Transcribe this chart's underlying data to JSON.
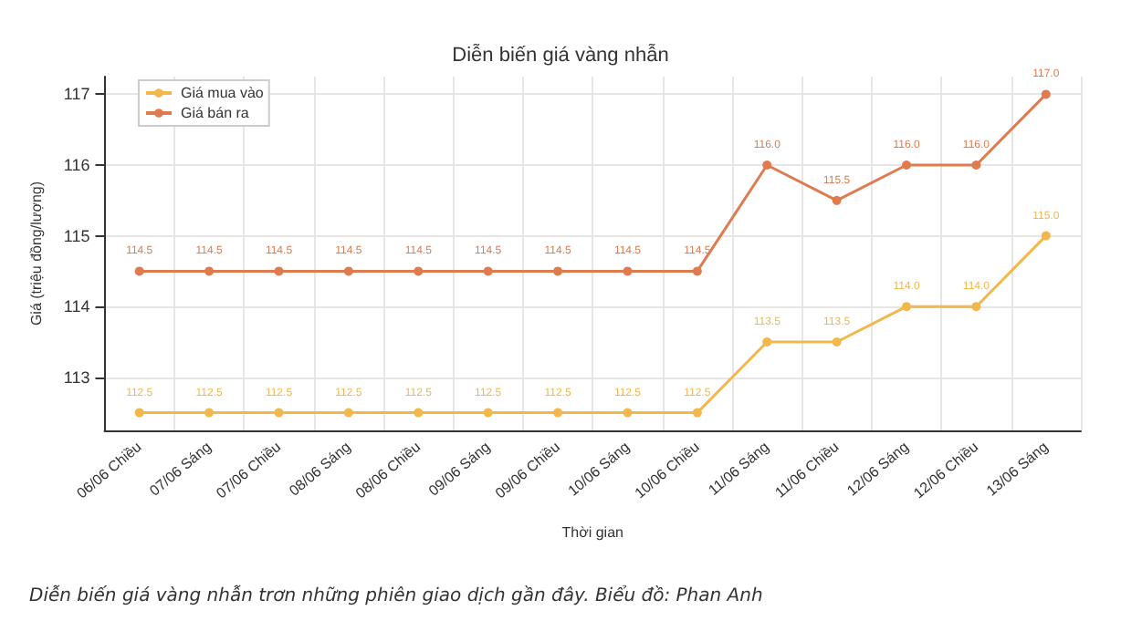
{
  "chart_data": {
    "type": "line",
    "title": "Diễn biến giá vàng nhẫn",
    "xlabel": "Thời gian",
    "ylabel": "Giá (triệu đồng/lượng)",
    "categories": [
      "06/06 Chiều",
      "07/06 Sáng",
      "07/06 Chiều",
      "08/06 Sáng",
      "08/06 Chiều",
      "09/06 Sáng",
      "09/06 Chiều",
      "10/06 Sáng",
      "10/06 Chiều",
      "11/06 Sáng",
      "11/06 Chiều",
      "12/06 Sáng",
      "12/06 Chiều",
      "13/06 Sáng"
    ],
    "series": [
      {
        "name": "Giá mua vào",
        "color": "#f2b84b",
        "values": [
          112.5,
          112.5,
          112.5,
          112.5,
          112.5,
          112.5,
          112.5,
          112.5,
          112.5,
          113.5,
          113.5,
          114.0,
          114.0,
          115.0
        ],
        "value_labels": [
          "112.5",
          "112.5",
          "112.5",
          "112.5",
          "112.5",
          "112.5",
          "112.5",
          "112.5",
          "112.5",
          "113.5",
          "113.5",
          "114.0",
          "114.0",
          "115.0"
        ]
      },
      {
        "name": "Giá bán ra",
        "color": "#e07b4f",
        "values": [
          114.5,
          114.5,
          114.5,
          114.5,
          114.5,
          114.5,
          114.5,
          114.5,
          114.5,
          116.0,
          115.5,
          116.0,
          116.0,
          117.0
        ],
        "value_labels": [
          "114.5",
          "114.5",
          "114.5",
          "114.5",
          "114.5",
          "114.5",
          "114.5",
          "114.5",
          "114.5",
          "116.0",
          "115.5",
          "116.0",
          "116.0",
          "117.0"
        ]
      }
    ],
    "ylim": [
      112.25,
      117.25
    ],
    "yticks": [
      113,
      114,
      115,
      116,
      117
    ],
    "grid": true,
    "legend": "top left",
    "marker": "circle",
    "line_style": "solid",
    "annotations": [
      "Diễn biến giá vàng nhẫn trơn những phiên giao dịch gần đây. Biểu đồ: Phan Anh"
    ]
  }
}
